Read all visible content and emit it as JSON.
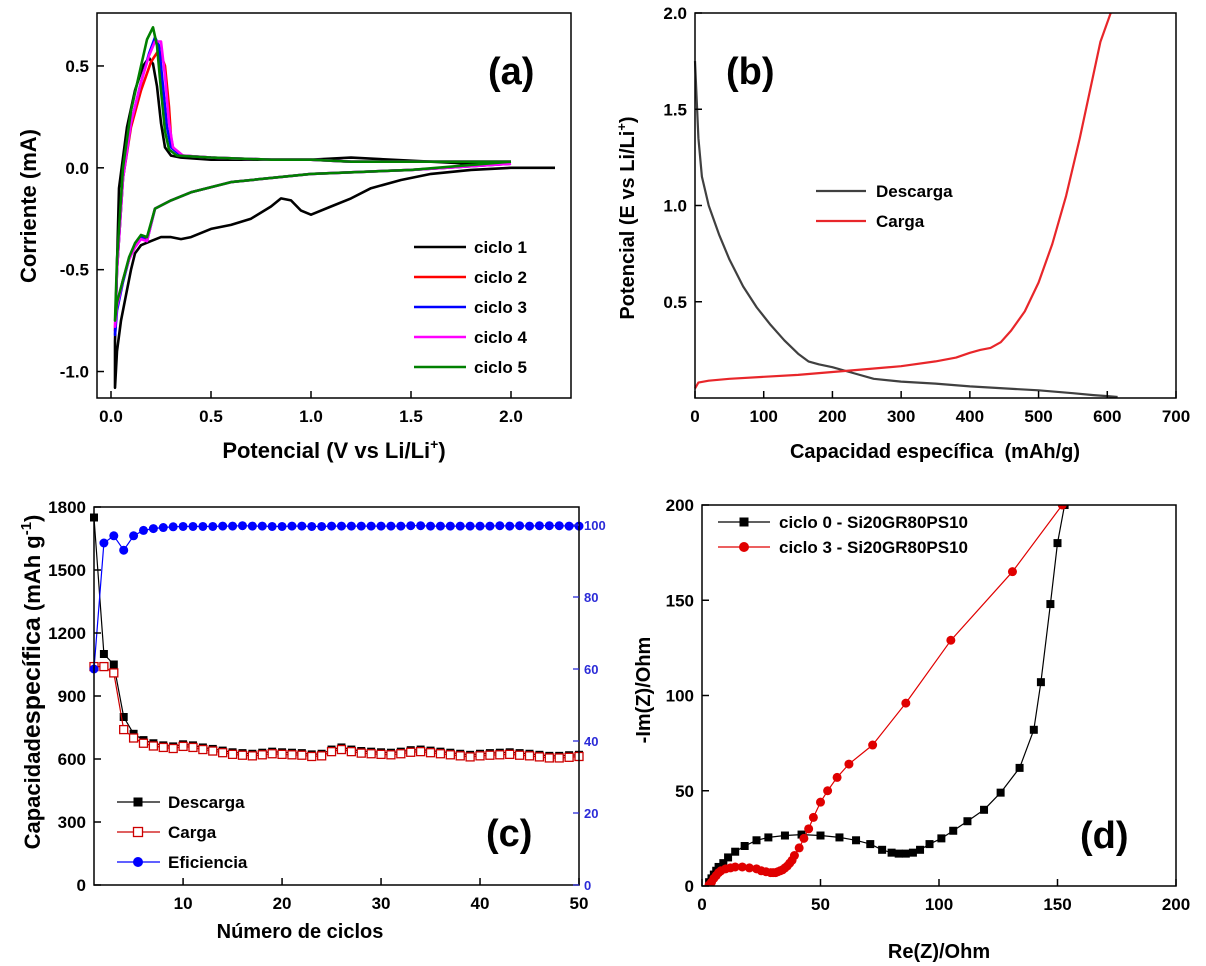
{
  "chart_data": [
    {
      "id": "a",
      "type": "line",
      "panel_label": "(a)",
      "xlabel": "Potencial (V vs Li/Li",
      "xlabel_sup": "+",
      "xlabel_close": ")",
      "ylabel": "Corriente (mA)",
      "xlim": [
        -0.07,
        2.3
      ],
      "ylim": [
        -1.13,
        0.76
      ],
      "xticks": [
        0.0,
        0.5,
        1.0,
        1.5,
        2.0
      ],
      "xtick_labels": [
        "0.0",
        "0.5",
        "1.0",
        "1.5",
        "2.0"
      ],
      "yticks": [
        -1.0,
        -0.5,
        0.0,
        0.5
      ],
      "ytick_labels": [
        "-1.0",
        "-0.5",
        "0.0",
        "0.5"
      ],
      "legend": "right",
      "series": [
        {
          "name": "ciclo 1",
          "color": "#000000",
          "x": [
            2.22,
            2.0,
            1.8,
            1.6,
            1.45,
            1.3,
            1.2,
            1.1,
            1.0,
            0.95,
            0.9,
            0.85,
            0.8,
            0.7,
            0.6,
            0.5,
            0.4,
            0.35,
            0.3,
            0.25,
            0.2,
            0.15,
            0.12,
            0.1,
            0.08,
            0.05,
            0.03,
            0.02,
            0.02,
            0.04,
            0.08,
            0.12,
            0.16,
            0.19,
            0.21,
            0.23,
            0.25,
            0.27,
            0.3,
            0.35,
            0.5,
            0.8,
            1.0,
            1.2,
            1.4,
            1.6,
            1.8,
            2.0
          ],
          "y": [
            0.0,
            0.0,
            -0.01,
            -0.03,
            -0.06,
            -0.1,
            -0.15,
            -0.19,
            -0.23,
            -0.21,
            -0.16,
            -0.15,
            -0.19,
            -0.25,
            -0.28,
            -0.3,
            -0.34,
            -0.35,
            -0.34,
            -0.34,
            -0.36,
            -0.38,
            -0.42,
            -0.5,
            -0.6,
            -0.75,
            -0.9,
            -1.08,
            -0.85,
            -0.1,
            0.2,
            0.38,
            0.5,
            0.54,
            0.51,
            0.4,
            0.22,
            0.1,
            0.06,
            0.05,
            0.04,
            0.04,
            0.04,
            0.05,
            0.04,
            0.03,
            0.02,
            0.02
          ]
        },
        {
          "name": "ciclo 2",
          "color": "#ff0000",
          "x": [
            2.0,
            1.5,
            1.0,
            0.6,
            0.4,
            0.3,
            0.22,
            0.18,
            0.15,
            0.12,
            0.09,
            0.06,
            0.03,
            0.02,
            0.03,
            0.06,
            0.1,
            0.15,
            0.2,
            0.24,
            0.27,
            0.29,
            0.3,
            0.31,
            0.35,
            0.5,
            0.8,
            1.0,
            1.2,
            1.5,
            1.8,
            2.0
          ],
          "y": [
            0.02,
            -0.01,
            -0.03,
            -0.07,
            -0.12,
            -0.16,
            -0.2,
            -0.35,
            -0.34,
            -0.38,
            -0.45,
            -0.55,
            -0.68,
            -0.8,
            -0.5,
            -0.05,
            0.2,
            0.38,
            0.52,
            0.58,
            0.5,
            0.3,
            0.15,
            0.1,
            0.06,
            0.05,
            0.04,
            0.04,
            0.03,
            0.03,
            0.03,
            0.03
          ]
        },
        {
          "name": "ciclo 3",
          "color": "#0000ff",
          "x": [
            2.0,
            1.5,
            1.0,
            0.6,
            0.4,
            0.3,
            0.22,
            0.18,
            0.15,
            0.12,
            0.09,
            0.06,
            0.03,
            0.02,
            0.03,
            0.06,
            0.1,
            0.15,
            0.19,
            0.22,
            0.24,
            0.26,
            0.28,
            0.3,
            0.35,
            0.5,
            0.8,
            1.0,
            1.2,
            1.5,
            1.8,
            2.0
          ],
          "y": [
            0.02,
            -0.01,
            -0.03,
            -0.07,
            -0.12,
            -0.16,
            -0.2,
            -0.36,
            -0.34,
            -0.38,
            -0.45,
            -0.56,
            -0.7,
            -0.82,
            -0.5,
            -0.05,
            0.22,
            0.42,
            0.56,
            0.64,
            0.6,
            0.4,
            0.2,
            0.1,
            0.06,
            0.05,
            0.04,
            0.04,
            0.03,
            0.03,
            0.03,
            0.03
          ]
        },
        {
          "name": "ciclo 4",
          "color": "#ff00ff",
          "x": [
            2.0,
            1.5,
            1.0,
            0.6,
            0.4,
            0.3,
            0.22,
            0.18,
            0.15,
            0.12,
            0.09,
            0.06,
            0.03,
            0.02,
            0.03,
            0.06,
            0.1,
            0.15,
            0.19,
            0.22,
            0.25,
            0.27,
            0.29,
            0.31,
            0.36,
            0.5,
            0.8,
            1.0,
            1.2,
            1.5,
            1.8,
            2.0
          ],
          "y": [
            0.02,
            -0.01,
            -0.03,
            -0.07,
            -0.12,
            -0.16,
            -0.2,
            -0.36,
            -0.35,
            -0.39,
            -0.45,
            -0.55,
            -0.68,
            -0.78,
            -0.5,
            -0.05,
            0.22,
            0.42,
            0.55,
            0.62,
            0.62,
            0.45,
            0.22,
            0.1,
            0.06,
            0.05,
            0.04,
            0.04,
            0.03,
            0.03,
            0.03,
            0.03
          ]
        },
        {
          "name": "ciclo 5",
          "color": "#008000",
          "x": [
            2.0,
            1.5,
            1.0,
            0.6,
            0.4,
            0.3,
            0.22,
            0.18,
            0.15,
            0.12,
            0.09,
            0.06,
            0.03,
            0.02,
            0.03,
            0.06,
            0.1,
            0.15,
            0.18,
            0.21,
            0.23,
            0.25,
            0.27,
            0.29,
            0.33,
            0.5,
            0.8,
            1.0,
            1.2,
            1.5,
            1.8,
            2.0
          ],
          "y": [
            0.03,
            -0.01,
            -0.03,
            -0.07,
            -0.12,
            -0.16,
            -0.2,
            -0.34,
            -0.33,
            -0.37,
            -0.44,
            -0.55,
            -0.66,
            -0.75,
            -0.45,
            0.0,
            0.28,
            0.5,
            0.63,
            0.69,
            0.6,
            0.38,
            0.18,
            0.09,
            0.06,
            0.05,
            0.04,
            0.04,
            0.03,
            0.03,
            0.03,
            0.03
          ]
        }
      ]
    },
    {
      "id": "b",
      "type": "line",
      "panel_label": "(b)",
      "xlabel": "Capacidad específica  (mAh/g)",
      "ylabel": "Potencial (E vs Li/Li",
      "ylabel_sup": "+",
      "ylabel_close": ")",
      "xlim": [
        0,
        700
      ],
      "ylim": [
        0.0,
        2.0
      ],
      "xticks": [
        0,
        100,
        200,
        300,
        400,
        500,
        600,
        700
      ],
      "xtick_labels": [
        "0",
        "100",
        "200",
        "300",
        "400",
        "500",
        "600",
        "700"
      ],
      "yticks": [
        0.5,
        1.0,
        1.5,
        2.0
      ],
      "ytick_labels": [
        "0.5",
        "1.0",
        "1.5",
        "2.0"
      ],
      "legend": "center",
      "series": [
        {
          "name": "Descarga",
          "color": "#404040",
          "x": [
            0,
            5,
            10,
            20,
            35,
            50,
            70,
            90,
            110,
            130,
            150,
            165,
            180,
            200,
            230,
            260,
            300,
            350,
            400,
            450,
            500,
            550,
            580,
            600,
            615
          ],
          "y": [
            1.75,
            1.35,
            1.15,
            1.0,
            0.85,
            0.72,
            0.58,
            0.47,
            0.38,
            0.3,
            0.23,
            0.19,
            0.175,
            0.16,
            0.13,
            0.1,
            0.085,
            0.075,
            0.06,
            0.05,
            0.04,
            0.025,
            0.015,
            0.01,
            0.005
          ]
        },
        {
          "name": "Carga",
          "color": "#e8262a",
          "x": [
            0,
            5,
            20,
            50,
            100,
            150,
            200,
            250,
            300,
            350,
            380,
            400,
            415,
            430,
            445,
            460,
            480,
            500,
            520,
            540,
            560,
            575,
            590,
            605
          ],
          "y": [
            0.05,
            0.08,
            0.09,
            0.1,
            0.11,
            0.12,
            0.135,
            0.15,
            0.165,
            0.19,
            0.21,
            0.235,
            0.25,
            0.26,
            0.29,
            0.35,
            0.45,
            0.6,
            0.8,
            1.05,
            1.35,
            1.6,
            1.85,
            2.0
          ]
        }
      ]
    },
    {
      "id": "c",
      "type": "line",
      "panel_label": "(c)",
      "xlabel": "Número de ciclos",
      "ylabel_prefix": "Capacidad",
      "ylabel_mid": "específica",
      "ylabel_unit": "(mAh g",
      "ylabel_sup": "-1",
      "ylabel_close": ")",
      "xlim": [
        1,
        50
      ],
      "ylim": [
        0,
        1800
      ],
      "y2lim": [
        0,
        105
      ],
      "xticks": [
        10,
        20,
        30,
        40,
        50
      ],
      "xtick_labels": [
        "10",
        "20",
        "30",
        "40",
        "50"
      ],
      "yticks": [
        0,
        300,
        600,
        900,
        1200,
        1500,
        1800
      ],
      "ytick_labels": [
        "0",
        "300",
        "600",
        "900",
        "1200",
        "1500",
        "1800"
      ],
      "y2ticks": [
        0,
        20,
        40,
        60,
        80,
        100
      ],
      "y2tick_labels": [
        "0",
        "20",
        "40",
        "60",
        "80",
        "100"
      ],
      "legend": "bottom-left",
      "cycles": [
        1,
        2,
        3,
        4,
        5,
        6,
        7,
        8,
        9,
        10,
        11,
        12,
        13,
        14,
        15,
        16,
        17,
        18,
        19,
        20,
        21,
        22,
        23,
        24,
        25,
        26,
        27,
        28,
        29,
        30,
        31,
        32,
        33,
        34,
        35,
        36,
        37,
        38,
        39,
        40,
        41,
        42,
        43,
        44,
        45,
        46,
        47,
        48,
        49,
        50
      ],
      "series": [
        {
          "name": "Descarga",
          "color": "#000000",
          "marker": "filled-square",
          "axis": "left",
          "values": [
            1750,
            1100,
            1050,
            800,
            720,
            690,
            675,
            665,
            660,
            670,
            665,
            655,
            648,
            640,
            632,
            628,
            625,
            630,
            635,
            632,
            630,
            628,
            622,
            625,
            645,
            655,
            645,
            638,
            635,
            632,
            630,
            635,
            642,
            645,
            640,
            635,
            630,
            625,
            620,
            625,
            628,
            630,
            632,
            628,
            625,
            620,
            615,
            615,
            618,
            620
          ]
        },
        {
          "name": "Carga",
          "color": "#cc0000",
          "marker": "open-square",
          "axis": "left",
          "values": [
            1040,
            1040,
            1010,
            740,
            700,
            675,
            662,
            655,
            650,
            660,
            655,
            645,
            638,
            630,
            622,
            618,
            615,
            620,
            625,
            622,
            620,
            618,
            612,
            615,
            635,
            645,
            635,
            628,
            625,
            622,
            620,
            625,
            632,
            635,
            630,
            625,
            620,
            615,
            610,
            615,
            618,
            620,
            622,
            618,
            615,
            610,
            605,
            605,
            608,
            612
          ]
        },
        {
          "name": "Eficiencia",
          "color": "#0000ff",
          "marker": "filled-circle",
          "axis": "right",
          "values": [
            60,
            95,
            97,
            93,
            97,
            98.5,
            99,
            99.3,
            99.5,
            99.6,
            99.6,
            99.6,
            99.6,
            99.7,
            99.7,
            99.8,
            99.7,
            99.7,
            99.6,
            99.6,
            99.7,
            99.7,
            99.6,
            99.6,
            99.7,
            99.7,
            99.7,
            99.7,
            99.7,
            99.7,
            99.7,
            99.7,
            99.8,
            99.8,
            99.7,
            99.7,
            99.7,
            99.7,
            99.7,
            99.7,
            99.7,
            99.8,
            99.7,
            99.8,
            99.7,
            99.8,
            99.8,
            99.8,
            99.7,
            99.7
          ]
        }
      ]
    },
    {
      "id": "d",
      "type": "scatter",
      "panel_label": "(d)",
      "xlabel": "Re(Z)/Ohm",
      "ylabel": "-Im(Z)/Ohm",
      "xlim": [
        0,
        200
      ],
      "ylim": [
        0,
        200
      ],
      "xticks": [
        0,
        50,
        100,
        150,
        200
      ],
      "xtick_labels": [
        "0",
        "50",
        "100",
        "150",
        "200"
      ],
      "yticks": [
        0,
        50,
        100,
        150,
        200
      ],
      "ytick_labels": [
        "0",
        "50",
        "100",
        "150",
        "200"
      ],
      "legend": "top-left",
      "series": [
        {
          "name": "ciclo 0 - Si20GR80PS10",
          "color": "#000000",
          "marker": "filled-square",
          "x": [
            3,
            4,
            5,
            6,
            7,
            9,
            11,
            14,
            18,
            23,
            28,
            35,
            42,
            50,
            58,
            65,
            71,
            76,
            80,
            83,
            86,
            89,
            92,
            96,
            101,
            106,
            112,
            119,
            126,
            134,
            140,
            143,
            147,
            150,
            153
          ],
          "y": [
            2,
            4,
            6,
            8,
            10,
            12,
            15,
            18,
            21,
            24,
            25.5,
            26.5,
            27,
            26.5,
            25.5,
            24,
            22,
            19,
            17.5,
            17,
            17,
            17.5,
            19,
            22,
            25,
            29,
            34,
            40,
            49,
            62,
            82,
            107,
            148,
            180,
            200
          ]
        },
        {
          "name": "ciclo 3 - Si20GR80PS10",
          "color": "#e00000",
          "marker": "filled-circle",
          "x": [
            3,
            4,
            5,
            6,
            7,
            8,
            10,
            12,
            14,
            17,
            20,
            23,
            25,
            27,
            29,
            30,
            31,
            32,
            33,
            34,
            35,
            36,
            37,
            38,
            39,
            41,
            43,
            45,
            47,
            50,
            53,
            57,
            62,
            72,
            86,
            105,
            131,
            152
          ],
          "y": [
            0.5,
            2,
            4,
            5.5,
            7,
            8,
            9,
            9.5,
            10,
            10,
            9.5,
            9,
            8,
            7.5,
            7,
            7,
            7,
            7.5,
            8,
            8.5,
            9.5,
            10.5,
            12,
            13.5,
            16,
            20,
            25,
            30,
            36,
            44,
            50,
            57,
            64,
            74,
            96,
            129,
            165,
            200
          ]
        }
      ]
    }
  ]
}
